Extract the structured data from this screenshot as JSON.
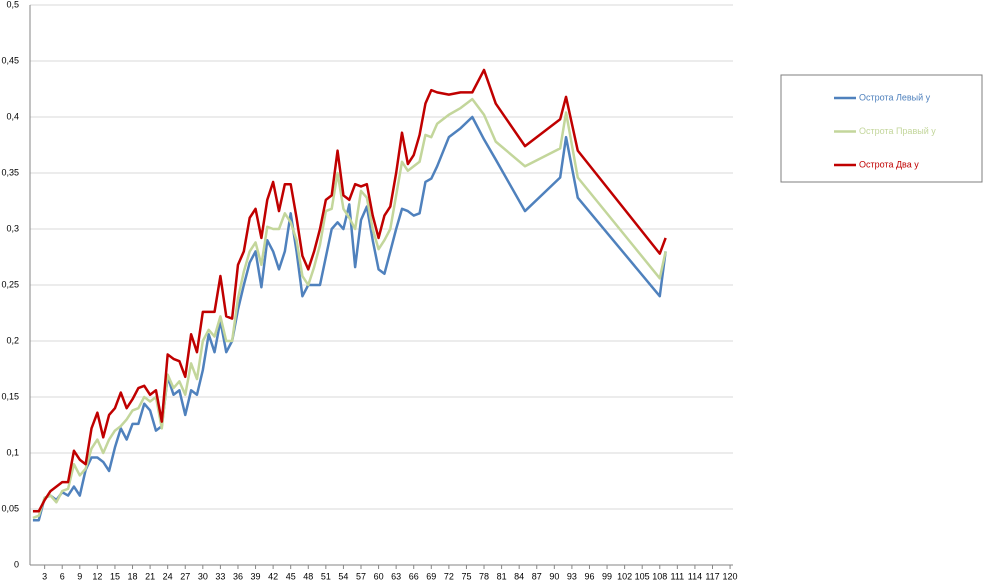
{
  "chart_data": {
    "type": "line",
    "x": [
      1,
      2,
      3,
      4,
      5,
      6,
      7,
      8,
      9,
      10,
      11,
      12,
      13,
      14,
      15,
      16,
      17,
      18,
      19,
      20,
      21,
      22,
      23,
      24,
      25,
      26,
      27,
      28,
      29,
      30,
      31,
      32,
      33,
      34,
      35,
      36,
      37,
      38,
      39,
      40,
      41,
      42,
      43,
      44,
      45,
      46,
      47,
      48,
      49,
      50,
      51,
      52,
      53,
      54,
      55,
      56,
      57,
      58,
      59,
      60,
      61,
      62,
      63,
      64,
      65,
      66,
      67,
      68,
      69,
      70,
      72,
      74,
      76,
      78,
      80,
      85,
      91,
      92,
      94,
      108,
      109
    ],
    "series": [
      {
        "name": "Острота Левый у",
        "color": "#4f81bd",
        "values": [
          0.04,
          0.04,
          0.06,
          0.062,
          0.058,
          0.065,
          0.062,
          0.07,
          0.062,
          0.085,
          0.096,
          0.096,
          0.092,
          0.084,
          0.105,
          0.122,
          0.112,
          0.126,
          0.126,
          0.144,
          0.138,
          0.12,
          0.124,
          0.168,
          0.152,
          0.156,
          0.134,
          0.156,
          0.152,
          0.174,
          0.206,
          0.19,
          0.218,
          0.19,
          0.2,
          0.228,
          0.25,
          0.27,
          0.28,
          0.248,
          0.29,
          0.28,
          0.264,
          0.28,
          0.314,
          0.28,
          0.24,
          0.25,
          0.25,
          0.25,
          0.275,
          0.3,
          0.306,
          0.3,
          0.322,
          0.266,
          0.308,
          0.32,
          0.29,
          0.264,
          0.26,
          0.28,
          0.3,
          0.318,
          0.316,
          0.312,
          0.314,
          0.342,
          0.345,
          0.356,
          0.382,
          0.39,
          0.4,
          0.38,
          0.362,
          0.316,
          0.346,
          0.382,
          0.328,
          0.24,
          0.28
        ]
      },
      {
        "name": "Острота Правый у",
        "color": "#c3d69b",
        "values": [
          0.042,
          0.044,
          0.06,
          0.062,
          0.056,
          0.066,
          0.068,
          0.09,
          0.08,
          0.086,
          0.104,
          0.112,
          0.1,
          0.112,
          0.12,
          0.124,
          0.13,
          0.138,
          0.14,
          0.15,
          0.146,
          0.15,
          0.122,
          0.17,
          0.158,
          0.164,
          0.152,
          0.18,
          0.166,
          0.2,
          0.21,
          0.204,
          0.222,
          0.2,
          0.2,
          0.238,
          0.262,
          0.28,
          0.288,
          0.268,
          0.302,
          0.3,
          0.3,
          0.314,
          0.306,
          0.29,
          0.258,
          0.25,
          0.266,
          0.286,
          0.316,
          0.318,
          0.35,
          0.318,
          0.31,
          0.3,
          0.334,
          0.328,
          0.3,
          0.282,
          0.29,
          0.3,
          0.33,
          0.36,
          0.352,
          0.356,
          0.36,
          0.384,
          0.382,
          0.394,
          0.402,
          0.408,
          0.416,
          0.402,
          0.378,
          0.356,
          0.372,
          0.404,
          0.346,
          0.256,
          0.28
        ]
      },
      {
        "name": "Острота Два  у",
        "color": "#c00000",
        "values": [
          0.048,
          0.048,
          0.058,
          0.066,
          0.07,
          0.074,
          0.074,
          0.102,
          0.094,
          0.09,
          0.122,
          0.136,
          0.114,
          0.134,
          0.14,
          0.154,
          0.14,
          0.148,
          0.158,
          0.16,
          0.152,
          0.156,
          0.128,
          0.188,
          0.184,
          0.182,
          0.168,
          0.206,
          0.19,
          0.226,
          0.226,
          0.226,
          0.258,
          0.222,
          0.22,
          0.268,
          0.28,
          0.31,
          0.318,
          0.292,
          0.326,
          0.342,
          0.316,
          0.34,
          0.34,
          0.31,
          0.276,
          0.264,
          0.28,
          0.3,
          0.326,
          0.33,
          0.37,
          0.33,
          0.326,
          0.34,
          0.338,
          0.34,
          0.312,
          0.292,
          0.312,
          0.32,
          0.35,
          0.386,
          0.358,
          0.366,
          0.384,
          0.412,
          0.424,
          0.422,
          0.42,
          0.422,
          0.422,
          0.442,
          0.412,
          0.374,
          0.398,
          0.418,
          0.37,
          0.278,
          0.292
        ]
      }
    ],
    "xlim": [
      0.5,
      120.5
    ],
    "xticks": [
      3,
      6,
      9,
      12,
      15,
      18,
      21,
      24,
      27,
      30,
      33,
      36,
      39,
      42,
      45,
      48,
      51,
      54,
      57,
      60,
      63,
      66,
      69,
      72,
      75,
      78,
      81,
      84,
      87,
      90,
      93,
      96,
      99,
      102,
      105,
      108,
      111,
      114,
      117,
      120
    ],
    "ylim": [
      0,
      0.5
    ],
    "yticks": [
      0,
      {
        "value": 0.05,
        "label": "0,05"
      },
      {
        "value": 0.1,
        "label": "0,1"
      },
      {
        "value": 0.15,
        "label": "0,15"
      },
      {
        "value": 0.2,
        "label": "0,2"
      },
      {
        "value": 0.25,
        "label": "0,25"
      },
      {
        "value": 0.3,
        "label": "0,3"
      },
      {
        "value": 0.35,
        "label": "0,35"
      },
      {
        "value": 0.4,
        "label": "0,4"
      },
      {
        "value": 0.45,
        "label": "0,45"
      },
      {
        "value": 0.5,
        "label": "0,5"
      }
    ],
    "grid": true,
    "legend": "right"
  }
}
